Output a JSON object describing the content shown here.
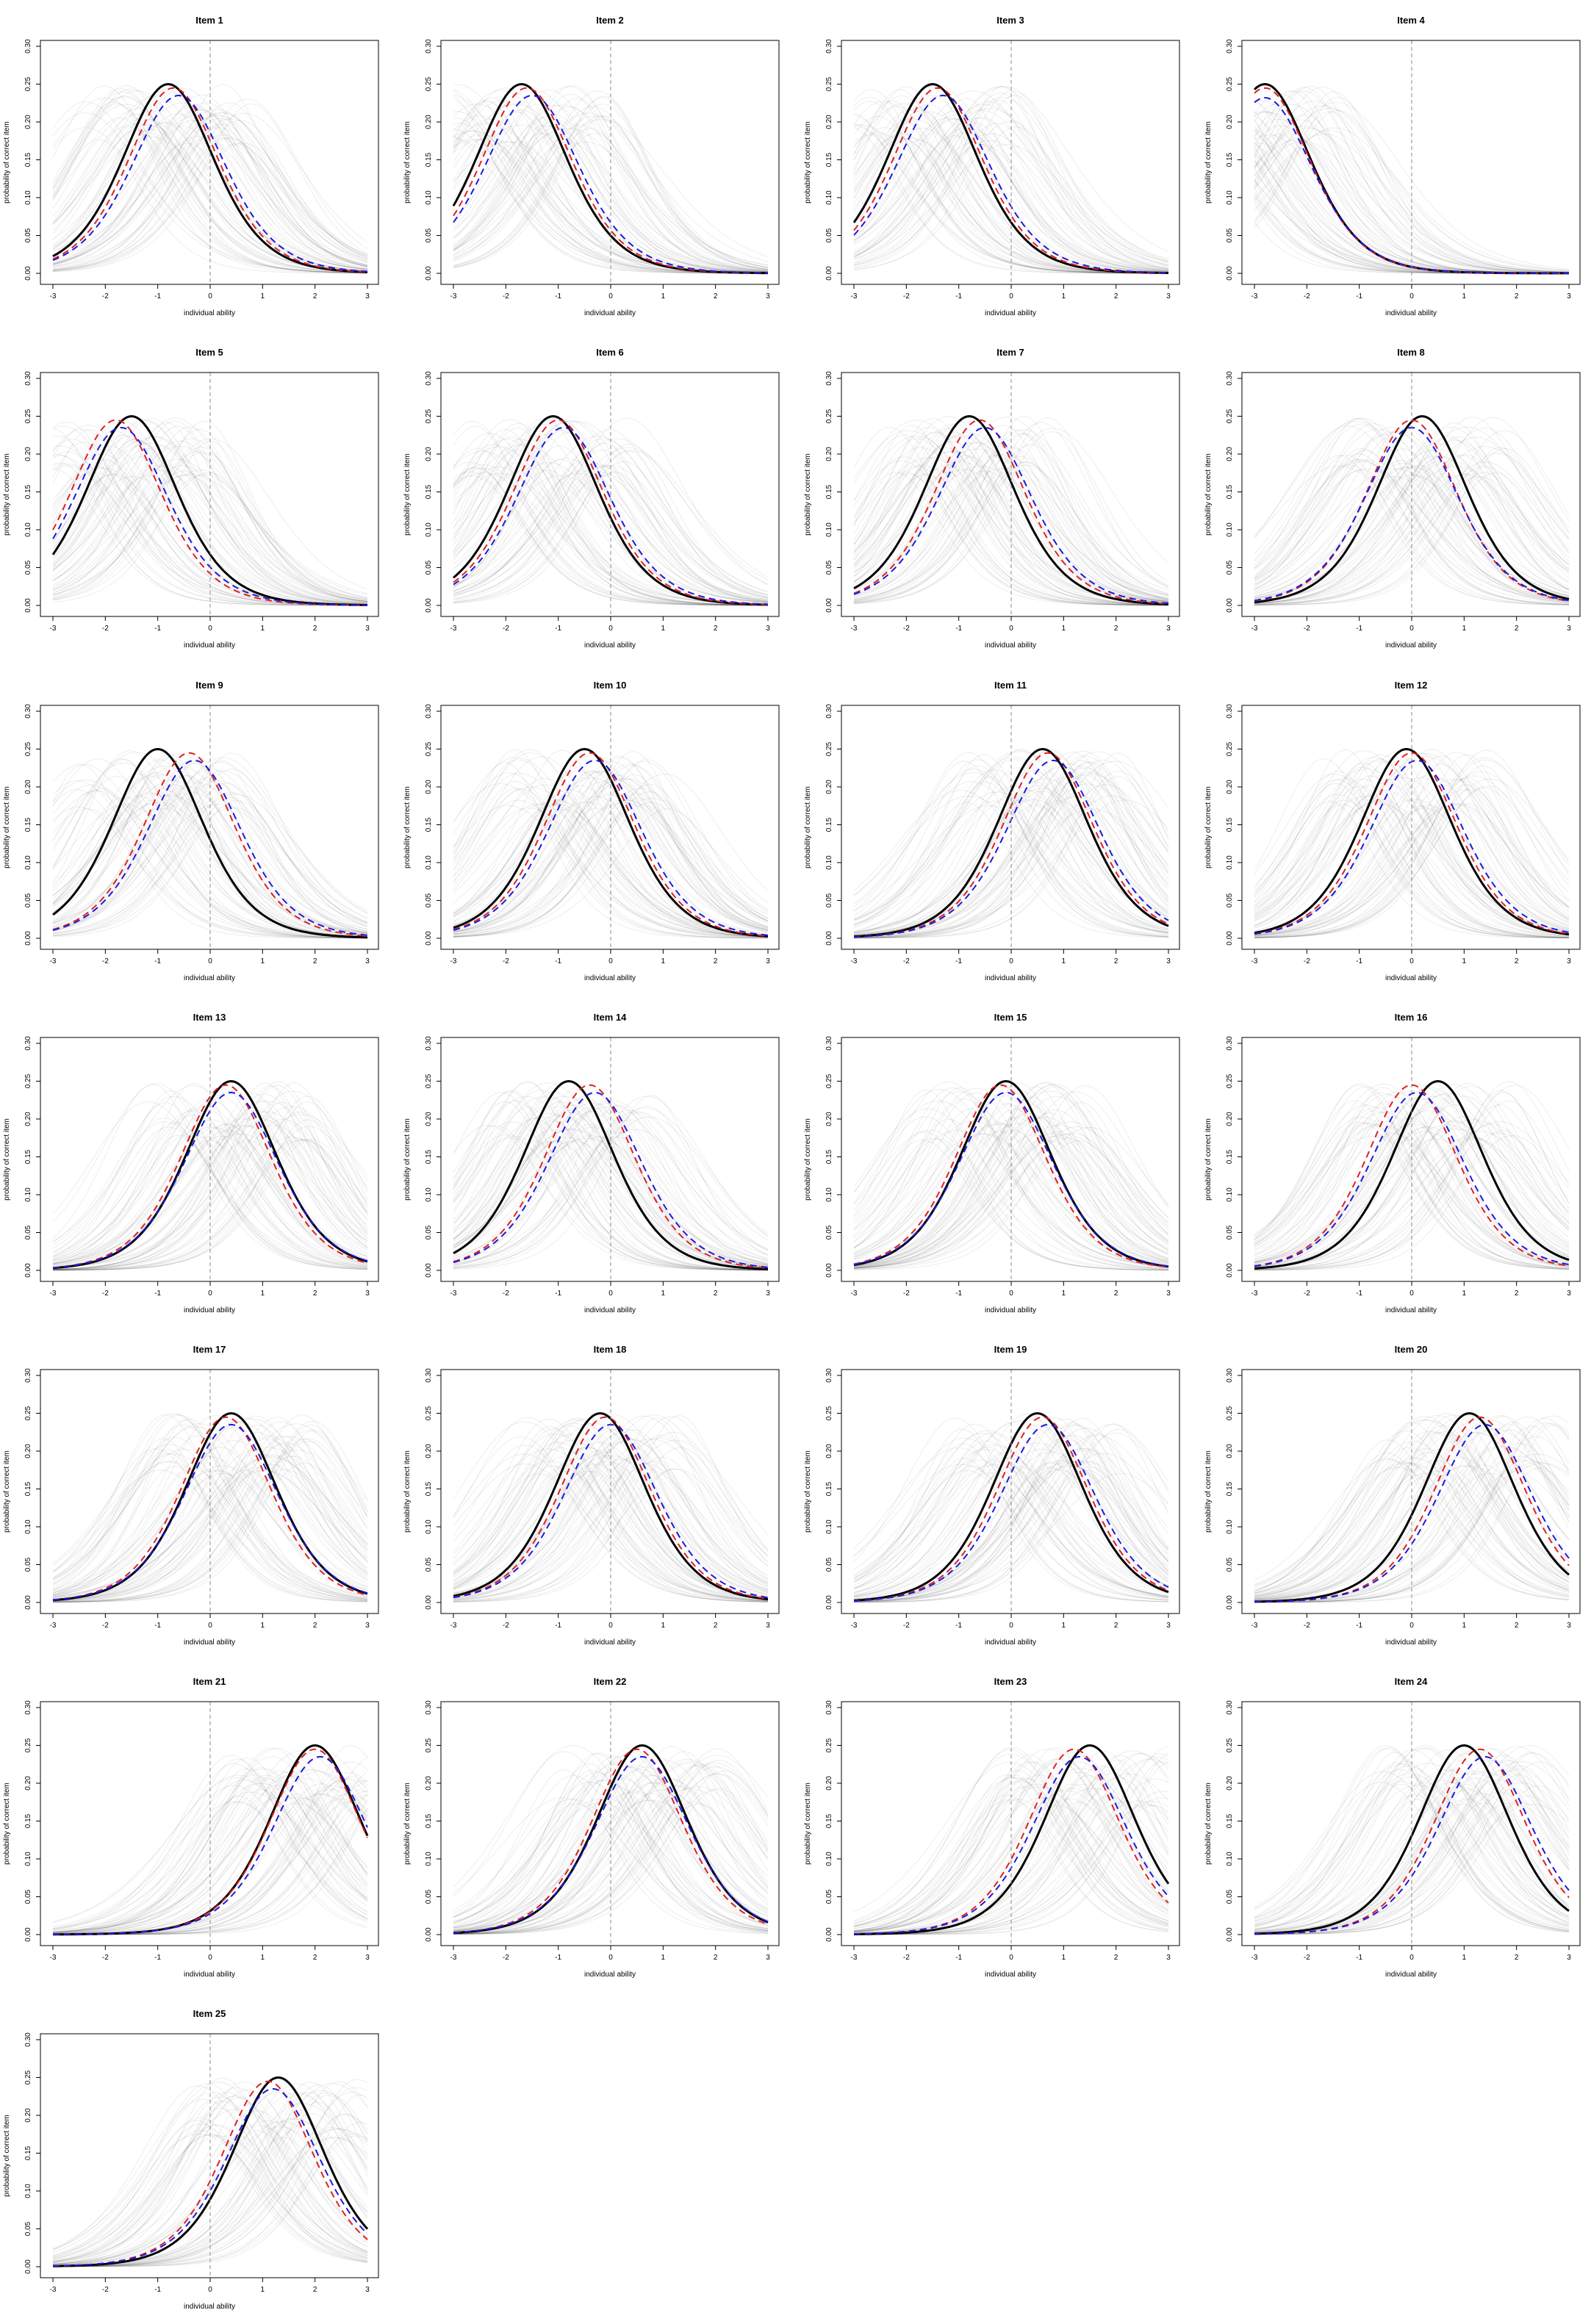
{
  "chart_data": {
    "type": "line",
    "layout": "grid of small multiples, 4 columns",
    "xlabel": "individual ability",
    "ylabel": "probability of correct item",
    "xlim": [
      -3,
      3
    ],
    "ylim": [
      0,
      0.3
    ],
    "xticks": [
      "-3",
      "-2",
      "-1",
      "0",
      "1",
      "2",
      "3"
    ],
    "yticks": [
      "0.00",
      "0.05",
      "0.10",
      "0.15",
      "0.20",
      "0.25",
      "0.30"
    ],
    "reference_line_x": 0,
    "colors": {
      "true": "#000000",
      "red": "#e02020",
      "blue": "#1a1adf",
      "background": "#000000"
    },
    "series_styles": {
      "true": "solid thick black",
      "red": "dashed red",
      "blue": "dashed blue",
      "background": "many thin light grey curves"
    },
    "panels": [
      {
        "title": "Item 1",
        "true_peak": -0.8,
        "red_peak": -0.7,
        "blue_peak": -0.6,
        "blue_max": 0.235
      },
      {
        "title": "Item 2",
        "true_peak": -1.7,
        "red_peak": -1.6,
        "blue_peak": -1.5,
        "blue_max": 0.235
      },
      {
        "title": "Item 3",
        "true_peak": -1.5,
        "red_peak": -1.4,
        "blue_peak": -1.3,
        "blue_max": 0.235
      },
      {
        "title": "Item 4",
        "true_peak": -2.8,
        "red_peak": -2.8,
        "blue_peak": -2.8,
        "blue_max": 0.232
      },
      {
        "title": "Item 5",
        "true_peak": -1.5,
        "red_peak": -1.8,
        "blue_peak": -1.7,
        "blue_max": 0.235
      },
      {
        "title": "Item 6",
        "true_peak": -1.1,
        "red_peak": -1.0,
        "blue_peak": -0.9,
        "blue_max": 0.235
      },
      {
        "title": "Item 7",
        "true_peak": -0.8,
        "red_peak": -0.6,
        "blue_peak": -0.5,
        "blue_max": 0.235
      },
      {
        "title": "Item 8",
        "true_peak": 0.2,
        "red_peak": 0.0,
        "blue_peak": 0.0,
        "blue_max": 0.235
      },
      {
        "title": "Item 9",
        "true_peak": -1.0,
        "red_peak": -0.4,
        "blue_peak": -0.3,
        "blue_max": 0.235
      },
      {
        "title": "Item 10",
        "true_peak": -0.5,
        "red_peak": -0.4,
        "blue_peak": -0.3,
        "blue_max": 0.235
      },
      {
        "title": "Item 11",
        "true_peak": 0.6,
        "red_peak": 0.7,
        "blue_peak": 0.8,
        "blue_max": 0.235
      },
      {
        "title": "Item 12",
        "true_peak": -0.1,
        "red_peak": 0.0,
        "blue_peak": 0.1,
        "blue_max": 0.235
      },
      {
        "title": "Item 13",
        "true_peak": 0.4,
        "red_peak": 0.3,
        "blue_peak": 0.4,
        "blue_max": 0.235
      },
      {
        "title": "Item 14",
        "true_peak": -0.8,
        "red_peak": -0.4,
        "blue_peak": -0.3,
        "blue_max": 0.235
      },
      {
        "title": "Item 15",
        "true_peak": -0.1,
        "red_peak": -0.2,
        "blue_peak": -0.1,
        "blue_max": 0.235
      },
      {
        "title": "Item 16",
        "true_peak": 0.5,
        "red_peak": 0.0,
        "blue_peak": 0.1,
        "blue_max": 0.235
      },
      {
        "title": "Item 17",
        "true_peak": 0.4,
        "red_peak": 0.3,
        "blue_peak": 0.4,
        "blue_max": 0.235
      },
      {
        "title": "Item 18",
        "true_peak": -0.2,
        "red_peak": -0.1,
        "blue_peak": 0.0,
        "blue_max": 0.235
      },
      {
        "title": "Item 19",
        "true_peak": 0.5,
        "red_peak": 0.6,
        "blue_peak": 0.7,
        "blue_max": 0.235
      },
      {
        "title": "Item 20",
        "true_peak": 1.1,
        "red_peak": 1.3,
        "blue_peak": 1.4,
        "blue_max": 0.235
      },
      {
        "title": "Item 21",
        "true_peak": 2.0,
        "red_peak": 2.0,
        "blue_peak": 2.1,
        "blue_max": 0.235
      },
      {
        "title": "Item 22",
        "true_peak": 0.6,
        "red_peak": 0.5,
        "blue_peak": 0.6,
        "blue_max": 0.235
      },
      {
        "title": "Item 23",
        "true_peak": 1.5,
        "red_peak": 1.2,
        "blue_peak": 1.3,
        "blue_max": 0.235
      },
      {
        "title": "Item 24",
        "true_peak": 1.0,
        "red_peak": 1.3,
        "blue_peak": 1.4,
        "blue_max": 0.235
      },
      {
        "title": "Item 25",
        "true_peak": 1.3,
        "red_peak": 1.1,
        "blue_peak": 1.2,
        "blue_max": 0.235
      }
    ]
  }
}
